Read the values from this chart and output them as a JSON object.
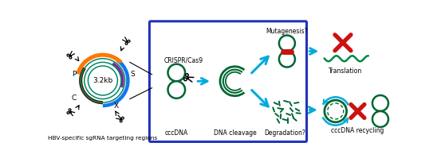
{
  "bg_color": "#ffffff",
  "box_color": "#2233bb",
  "arrow_color": "#00aadd",
  "green_dark": "#006633",
  "green2": "#008844",
  "red_x": "#cc1111",
  "orange": "#ff7700",
  "blue_arc": "#1177ee",
  "purple_arc": "#882299",
  "brown_arc": "#4a1a00",
  "teal_arc": "#008866",
  "caption_bottom": "HBV-specific sgRNA targeting regions",
  "label_cccdna": "cccDNA",
  "label_cleavage": "DNA cleavage",
  "label_mutagenesis": "Mutagenesis?",
  "label_degradation": "Degradation?",
  "label_translation": "Translation",
  "label_recycling": "cccDNA recycling",
  "label_crispr": "CRISPR/Cas9",
  "label_size": "3.2kb",
  "label_s": "S",
  "label_p": "P",
  "label_c": "C",
  "label_x": "X"
}
